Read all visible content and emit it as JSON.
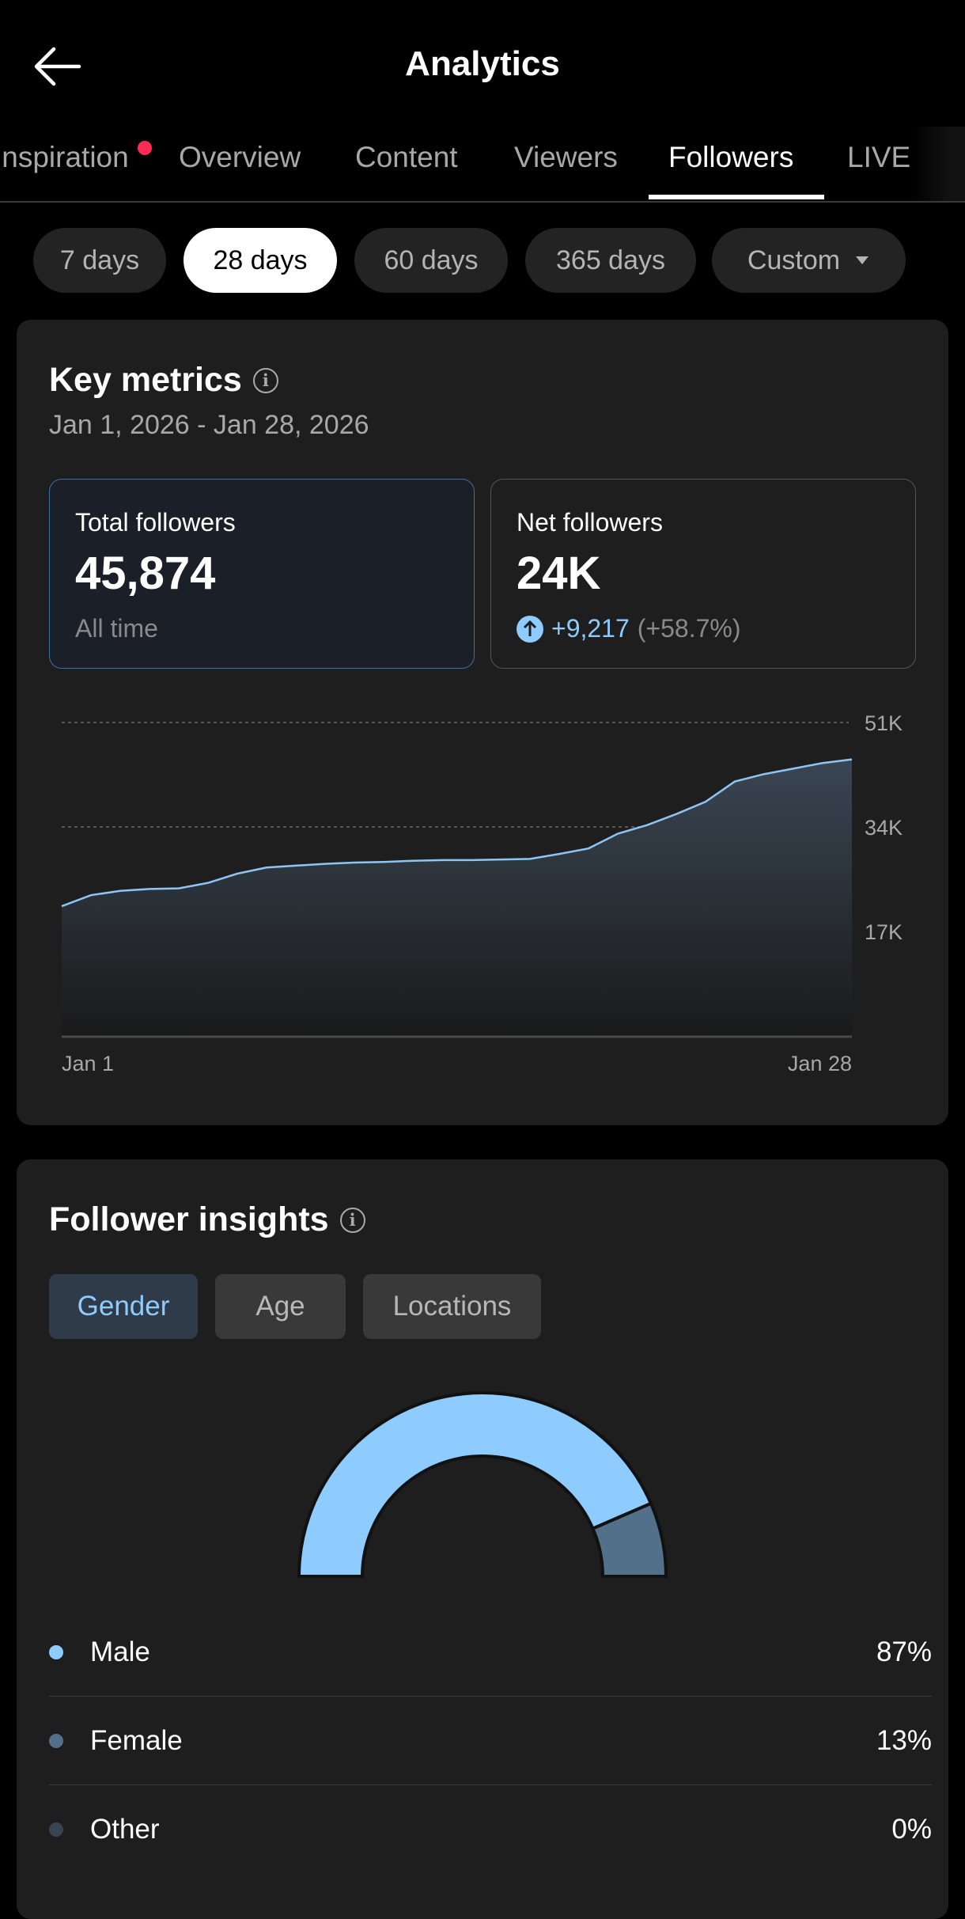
{
  "header": {
    "title": "Analytics",
    "back_icon": "arrow-left-icon"
  },
  "tabs": [
    {
      "label": "Inspiration",
      "has_dot": true
    },
    {
      "label": "Overview"
    },
    {
      "label": "Content"
    },
    {
      "label": "Viewers"
    },
    {
      "label": "Followers",
      "active": true
    },
    {
      "label": "LIVE"
    }
  ],
  "ranges": [
    {
      "label": "7 days"
    },
    {
      "label": "28 days",
      "active": true
    },
    {
      "label": "60 days"
    },
    {
      "label": "365 days"
    },
    {
      "label": "Custom"
    }
  ],
  "key_metrics": {
    "title": "Key metrics",
    "date_range": "Jan 1, 2026 - Jan 28, 2026",
    "total": {
      "label": "Total followers",
      "value": "45,874",
      "sub": "All time"
    },
    "net": {
      "label": "Net followers",
      "value": "24K",
      "change": "+9,217",
      "change_pct": "(+58.7%)"
    }
  },
  "chart_data": [
    {
      "type": "area",
      "title": "Total followers",
      "x": [
        "Jan 1",
        "Jan 2",
        "Jan 3",
        "Jan 4",
        "Jan 5",
        "Jan 6",
        "Jan 7",
        "Jan 8",
        "Jan 9",
        "Jan 10",
        "Jan 11",
        "Jan 12",
        "Jan 13",
        "Jan 14",
        "Jan 15",
        "Jan 16",
        "Jan 17",
        "Jan 18",
        "Jan 19",
        "Jan 20",
        "Jan 21",
        "Jan 22",
        "Jan 23",
        "Jan 24",
        "Jan 25",
        "Jan 26",
        "Jan 27",
        "Jan 28"
      ],
      "values": [
        21100,
        22900,
        23600,
        23900,
        24000,
        24900,
        26400,
        27400,
        27700,
        28000,
        28200,
        28300,
        28500,
        28600,
        28600,
        28700,
        28800,
        29600,
        30500,
        32900,
        34300,
        36100,
        38100,
        41400,
        42600,
        43500,
        44400,
        45000
      ],
      "xtick_labels": [
        "Jan 1",
        "Jan 28"
      ],
      "ytick_labels": [
        "51K",
        "34K",
        "17K"
      ],
      "yticks": [
        51000,
        34000,
        17000
      ],
      "ylim": [
        0,
        51000
      ],
      "grid": true,
      "color": "#8ec5f5"
    },
    {
      "type": "pie",
      "title": "Gender",
      "categories": [
        "Male",
        "Female",
        "Other"
      ],
      "values": [
        87,
        13,
        0
      ],
      "value_labels": [
        "87%",
        "13%",
        "0%"
      ],
      "colors": [
        "#8ecbff",
        "#527089",
        "#3a4452"
      ]
    }
  ],
  "insights": {
    "title": "Follower insights",
    "tabs": [
      {
        "label": "Gender",
        "active": true
      },
      {
        "label": "Age"
      },
      {
        "label": "Locations"
      }
    ]
  },
  "colors": {
    "accent": "#8ecbff",
    "notification": "#fe2c55"
  }
}
